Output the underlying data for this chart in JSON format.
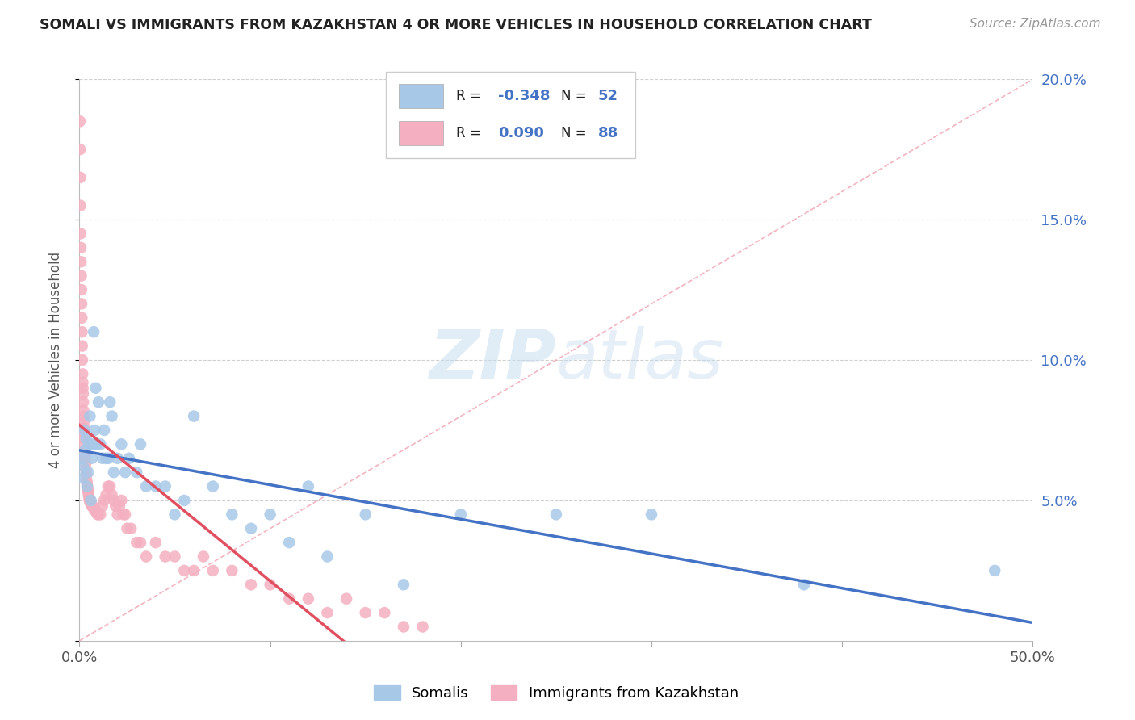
{
  "title": "SOMALI VS IMMIGRANTS FROM KAZAKHSTAN 4 OR MORE VEHICLES IN HOUSEHOLD CORRELATION CHART",
  "source": "Source: ZipAtlas.com",
  "ylabel": "4 or more Vehicles in Household",
  "xmin": 0,
  "xmax": 50,
  "ymin": 0,
  "ymax": 20,
  "somali_color": "#a8c8e8",
  "somali_edge_color": "#a8c8e8",
  "kazakhstan_color": "#f4b0c0",
  "kazakhstan_edge_color": "#f4b0c0",
  "blue_line_color": "#4472c4",
  "red_line_color": "#e05060",
  "diag_line_color": "#f0a0b0",
  "right_axis_color": "#4472c4",
  "grid_color": "#d0d0d0",
  "background_color": "#ffffff",
  "somali_R": -0.348,
  "somali_N": 52,
  "kazakhstan_R": 0.09,
  "kazakhstan_N": 88,
  "legend_label1": "Somalis",
  "legend_label2": "Immigrants from Kazakhstan",
  "watermark_zip": "ZIP",
  "watermark_atlas": "atlas",
  "somali_x": [
    0.1,
    0.15,
    0.2,
    0.25,
    0.3,
    0.35,
    0.4,
    0.45,
    0.5,
    0.55,
    0.6,
    0.65,
    0.7,
    0.75,
    0.8,
    0.85,
    0.9,
    1.0,
    1.1,
    1.2,
    1.3,
    1.4,
    1.5,
    1.6,
    1.7,
    1.8,
    2.0,
    2.2,
    2.4,
    2.6,
    3.0,
    3.2,
    3.5,
    4.0,
    4.5,
    5.0,
    5.5,
    6.0,
    7.0,
    8.0,
    9.0,
    10.0,
    11.0,
    12.0,
    13.0,
    15.0,
    17.0,
    20.0,
    25.0,
    30.0,
    38.0,
    48.0
  ],
  "somali_y": [
    6.5,
    5.8,
    6.2,
    7.5,
    6.8,
    7.2,
    5.5,
    6.0,
    7.0,
    8.0,
    5.0,
    6.5,
    7.0,
    11.0,
    7.5,
    9.0,
    7.0,
    8.5,
    7.0,
    6.5,
    7.5,
    6.5,
    6.5,
    8.5,
    8.0,
    6.0,
    6.5,
    7.0,
    6.0,
    6.5,
    6.0,
    7.0,
    5.5,
    5.5,
    5.5,
    4.5,
    5.0,
    8.0,
    5.5,
    4.5,
    4.0,
    4.5,
    3.5,
    5.5,
    3.0,
    4.5,
    2.0,
    4.5,
    4.5,
    4.5,
    2.0,
    2.5
  ],
  "kazakhstan_x": [
    0.02,
    0.03,
    0.04,
    0.05,
    0.06,
    0.07,
    0.08,
    0.09,
    0.1,
    0.11,
    0.12,
    0.13,
    0.14,
    0.15,
    0.16,
    0.17,
    0.18,
    0.19,
    0.2,
    0.21,
    0.22,
    0.23,
    0.24,
    0.25,
    0.26,
    0.27,
    0.28,
    0.29,
    0.3,
    0.32,
    0.34,
    0.36,
    0.38,
    0.4,
    0.42,
    0.44,
    0.46,
    0.48,
    0.5,
    0.52,
    0.55,
    0.58,
    0.6,
    0.65,
    0.7,
    0.75,
    0.8,
    0.85,
    0.9,
    0.95,
    1.0,
    1.1,
    1.2,
    1.3,
    1.4,
    1.5,
    1.6,
    1.7,
    1.8,
    1.9,
    2.0,
    2.1,
    2.2,
    2.3,
    2.4,
    2.5,
    2.7,
    3.0,
    3.2,
    3.5,
    4.0,
    4.5,
    5.0,
    5.5,
    6.0,
    6.5,
    7.0,
    8.0,
    9.0,
    10.0,
    11.0,
    12.0,
    13.0,
    14.0,
    15.0,
    16.0,
    17.0,
    18.0
  ],
  "kazakhstan_y": [
    18.5,
    17.5,
    16.5,
    15.5,
    14.5,
    14.0,
    13.5,
    13.0,
    12.5,
    12.0,
    11.5,
    11.0,
    10.5,
    10.0,
    9.5,
    9.2,
    9.0,
    8.8,
    8.5,
    8.2,
    8.0,
    7.8,
    7.6,
    7.4,
    7.2,
    7.0,
    6.8,
    6.6,
    6.5,
    6.3,
    6.1,
    5.9,
    5.7,
    5.6,
    5.5,
    5.4,
    5.3,
    5.2,
    5.1,
    5.0,
    5.0,
    4.9,
    4.9,
    4.8,
    4.8,
    4.7,
    4.7,
    4.6,
    4.6,
    4.5,
    4.5,
    4.5,
    4.8,
    5.0,
    5.2,
    5.5,
    5.5,
    5.2,
    5.0,
    4.8,
    4.5,
    4.8,
    5.0,
    4.5,
    4.5,
    4.0,
    4.0,
    3.5,
    3.5,
    3.0,
    3.5,
    3.0,
    3.0,
    2.5,
    2.5,
    3.0,
    2.5,
    2.5,
    2.0,
    2.0,
    1.5,
    1.5,
    1.0,
    1.5,
    1.0,
    1.0,
    0.5,
    0.5
  ]
}
